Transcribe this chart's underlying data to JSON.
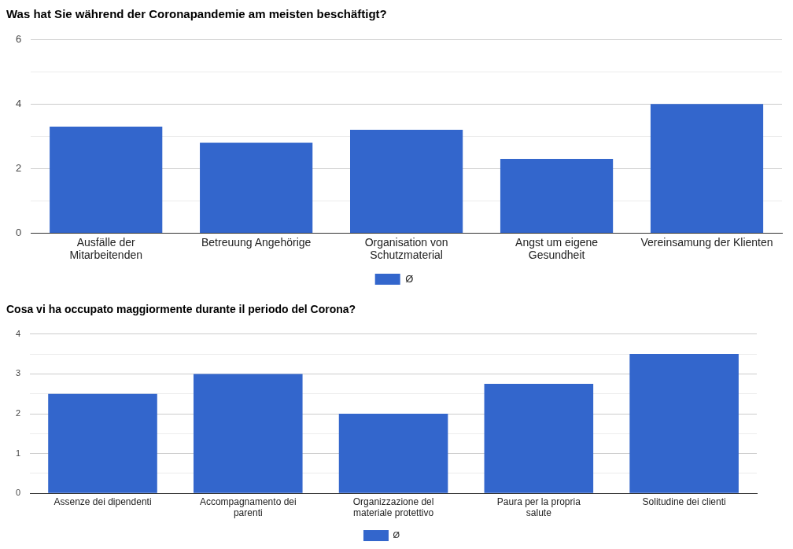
{
  "chart_data": [
    {
      "type": "bar",
      "title": "Was hat Sie während der Coronapandemie am meisten beschäftigt?",
      "categories": [
        "Ausfälle der Mitarbeitenden",
        "Betreuung Angehörige",
        "Organisation von Schutzmaterial",
        "Angst um eigene Gesundheit",
        "Vereinsamung der Klienten"
      ],
      "series": [
        {
          "name": "Ø",
          "color": "#3366cc",
          "values": [
            3.3,
            2.8,
            3.2,
            2.3,
            4.0
          ]
        }
      ],
      "ylim": [
        0,
        6
      ],
      "yticks": [
        0,
        {
          "value": 1,
          "label": null
        },
        2,
        {
          "value": 3,
          "label": null
        },
        4,
        {
          "value": 5,
          "label": null
        },
        6
      ],
      "grid": "y",
      "legend": "bottom"
    },
    {
      "type": "bar",
      "title": "Cosa vi ha occupato maggiormente durante il periodo del Corona?",
      "categories": [
        "Assenze dei dipendenti",
        "Accompagnamento dei parenti",
        "Organizzazione del materiale protettivo",
        "Paura per la propria salute",
        "Solitudine dei clienti"
      ],
      "series": [
        {
          "name": "Ø",
          "color": "#3366cc",
          "values": [
            2.5,
            3.0,
            2.0,
            2.75,
            3.5
          ]
        }
      ],
      "ylim": [
        0,
        4
      ],
      "yticks": [
        0,
        {
          "value": 0.5,
          "label": null
        },
        1,
        {
          "value": 1.5,
          "label": null
        },
        2,
        {
          "value": 2.5,
          "label": null
        },
        3,
        {
          "value": 3.5,
          "label": null
        },
        4
      ],
      "grid": "y",
      "legend": "bottom"
    }
  ]
}
